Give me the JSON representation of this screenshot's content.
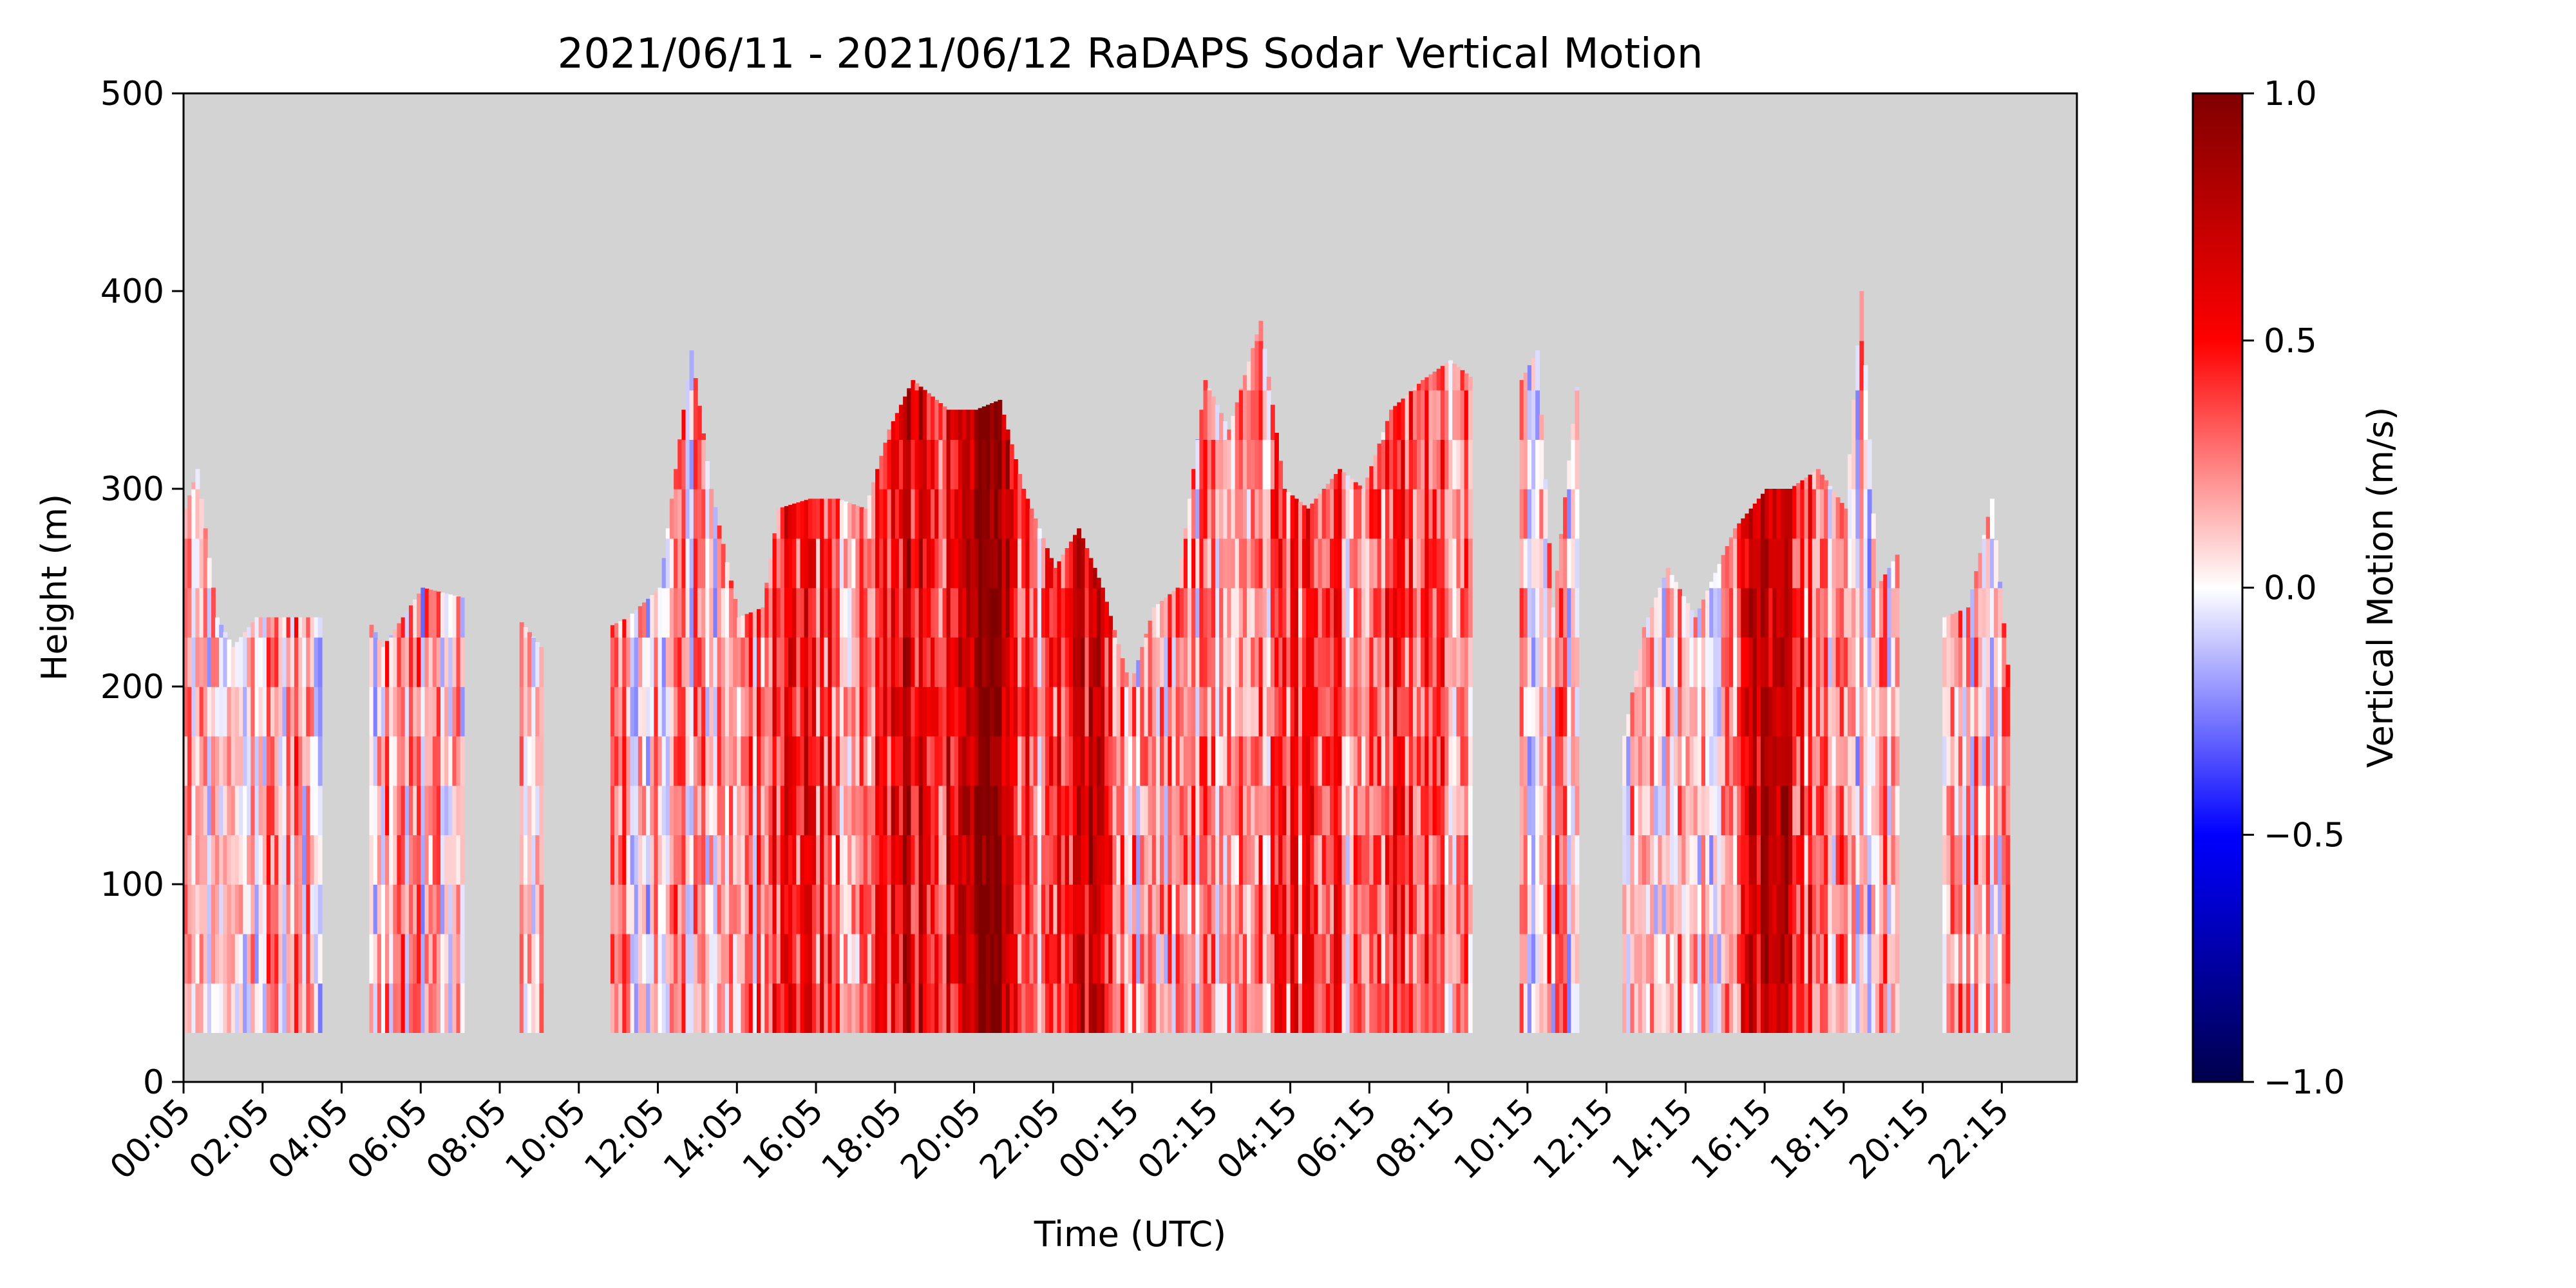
{
  "chart_data": {
    "type": "heatmap",
    "title": "2021/06/11 - 2021/06/12 RaDAPS Sodar Vertical Motion",
    "xlabel": "Time (UTC)",
    "ylabel": "Height (m)",
    "ylim": [
      0,
      500
    ],
    "y_ticks": [
      0,
      100,
      200,
      300,
      400,
      500
    ],
    "x_tick_labels": [
      "00:05",
      "02:05",
      "04:05",
      "06:05",
      "08:05",
      "10:05",
      "12:05",
      "14:05",
      "16:05",
      "18:05",
      "20:05",
      "22:05",
      "00:15",
      "02:15",
      "04:15",
      "06:15",
      "08:15",
      "10:15",
      "12:15",
      "14:15",
      "16:15",
      "18:15",
      "20:15",
      "22:15"
    ],
    "colorbar": {
      "label": "Vertical Motion (m/s)",
      "range": [
        -1.0,
        1.0
      ],
      "ticks": [
        1.0,
        0.5,
        0.0,
        -0.5,
        -1.0
      ],
      "tick_labels": [
        "1.0",
        "0.5",
        "0.0",
        "−0.5",
        "−1.0"
      ],
      "colormap": "seismic"
    },
    "missing_color": "#d3d3d3",
    "grid": false,
    "min_height": 25,
    "top_height_by_time": [
      [
        0,
        290
      ],
      [
        0.3,
        310
      ],
      [
        0.8,
        235
      ],
      [
        1.2,
        220
      ],
      [
        1.8,
        235
      ],
      [
        2.4,
        235
      ],
      [
        3.5,
        235
      ],
      [
        3.9,
        0
      ],
      [
        4.2,
        0
      ],
      [
        4.6,
        235
      ],
      [
        5.0,
        220
      ],
      [
        6.0,
        250
      ],
      [
        7.0,
        245
      ],
      [
        7.6,
        0
      ],
      [
        8.2,
        0
      ],
      [
        8.4,
        235
      ],
      [
        9.0,
        220
      ],
      [
        9.5,
        0
      ],
      [
        10.5,
        0
      ],
      [
        10.7,
        230
      ],
      [
        11.2,
        235
      ],
      [
        12.0,
        250
      ],
      [
        12.8,
        370
      ],
      [
        13.3,
        300
      ],
      [
        14.0,
        235
      ],
      [
        14.6,
        240
      ],
      [
        15.0,
        290
      ],
      [
        15.8,
        295
      ],
      [
        16.5,
        295
      ],
      [
        17.2,
        290
      ],
      [
        17.8,
        330
      ],
      [
        18.4,
        355
      ],
      [
        19.3,
        340
      ],
      [
        20.0,
        340
      ],
      [
        20.6,
        345
      ],
      [
        21.2,
        300
      ],
      [
        22.0,
        260
      ],
      [
        22.6,
        280
      ],
      [
        23.2,
        250
      ],
      [
        23.9,
        200
      ],
      [
        24.5,
        240
      ],
      [
        25.1,
        250
      ],
      [
        25.8,
        355
      ],
      [
        26.4,
        330
      ],
      [
        27.2,
        385
      ],
      [
        27.8,
        300
      ],
      [
        28.4,
        290
      ],
      [
        29.2,
        310
      ],
      [
        29.8,
        300
      ],
      [
        30.5,
        340
      ],
      [
        31.3,
        355
      ],
      [
        32.0,
        365
      ],
      [
        32.6,
        355
      ],
      [
        33.0,
        0
      ],
      [
        33.4,
        0
      ],
      [
        33.8,
        355
      ],
      [
        34.2,
        370
      ],
      [
        34.6,
        240
      ],
      [
        35.3,
        370
      ],
      [
        35.8,
        0
      ],
      [
        36.2,
        0
      ],
      [
        36.4,
        175
      ],
      [
        36.9,
        230
      ],
      [
        37.5,
        260
      ],
      [
        38.2,
        235
      ],
      [
        39.2,
        280
      ],
      [
        40.0,
        300
      ],
      [
        40.6,
        300
      ],
      [
        41.3,
        310
      ],
      [
        42.0,
        290
      ],
      [
        42.4,
        400
      ],
      [
        42.8,
        250
      ],
      [
        43.4,
        270
      ],
      [
        43.6,
        0
      ],
      [
        44.3,
        0
      ],
      [
        44.5,
        235
      ],
      [
        45.1,
        240
      ],
      [
        45.7,
        295
      ],
      [
        46.2,
        190
      ]
    ]
  }
}
